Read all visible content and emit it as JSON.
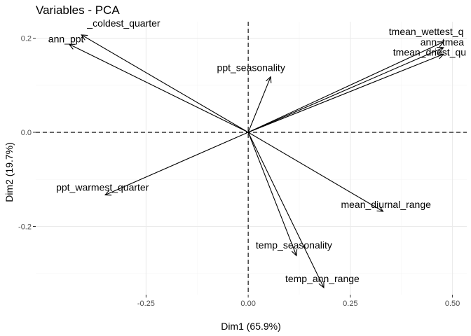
{
  "chart_data": {
    "type": "scatter",
    "subtype": "pca-variable-loadings",
    "title": "Variables - PCA",
    "xlabel": "Dim1 (65.9%)",
    "ylabel": "Dim2 (19.7%)",
    "xlim": [
      -0.52,
      0.535
    ],
    "ylim": [
      -0.345,
      0.235
    ],
    "xticks": [
      -0.25,
      0.0,
      0.25,
      0.5
    ],
    "xtick_labels": [
      "-0.25",
      "0.00",
      "0.25",
      "0.50"
    ],
    "yticks": [
      -0.2,
      0.0,
      0.2
    ],
    "ytick_labels": [
      "-0.2",
      "0.0",
      "0.2"
    ],
    "grid": true,
    "reference_lines": {
      "x": 0,
      "y": 0,
      "style": "dashed"
    },
    "variables": [
      {
        "name": "_coldest_quarter",
        "x": -0.408,
        "y": 0.207
      },
      {
        "name": "ann_ppt",
        "x": -0.438,
        "y": 0.187
      },
      {
        "name": "ppt_seasonality",
        "x": 0.055,
        "y": 0.118
      },
      {
        "name": "tmean_wettest_q",
        "x": 0.478,
        "y": 0.192
      },
      {
        "name": "ann_tmea",
        "x": 0.478,
        "y": 0.18
      },
      {
        "name": "tmean_driest_qu",
        "x": 0.478,
        "y": 0.166
      },
      {
        "name": "ppt_warmest_quarter",
        "x": -0.35,
        "y": -0.133
      },
      {
        "name": "mean_diurnal_range",
        "x": 0.33,
        "y": -0.168
      },
      {
        "name": "temp_seasonality",
        "x": 0.118,
        "y": -0.262
      },
      {
        "name": "temp_ann_range",
        "x": 0.185,
        "y": -0.33
      }
    ]
  }
}
